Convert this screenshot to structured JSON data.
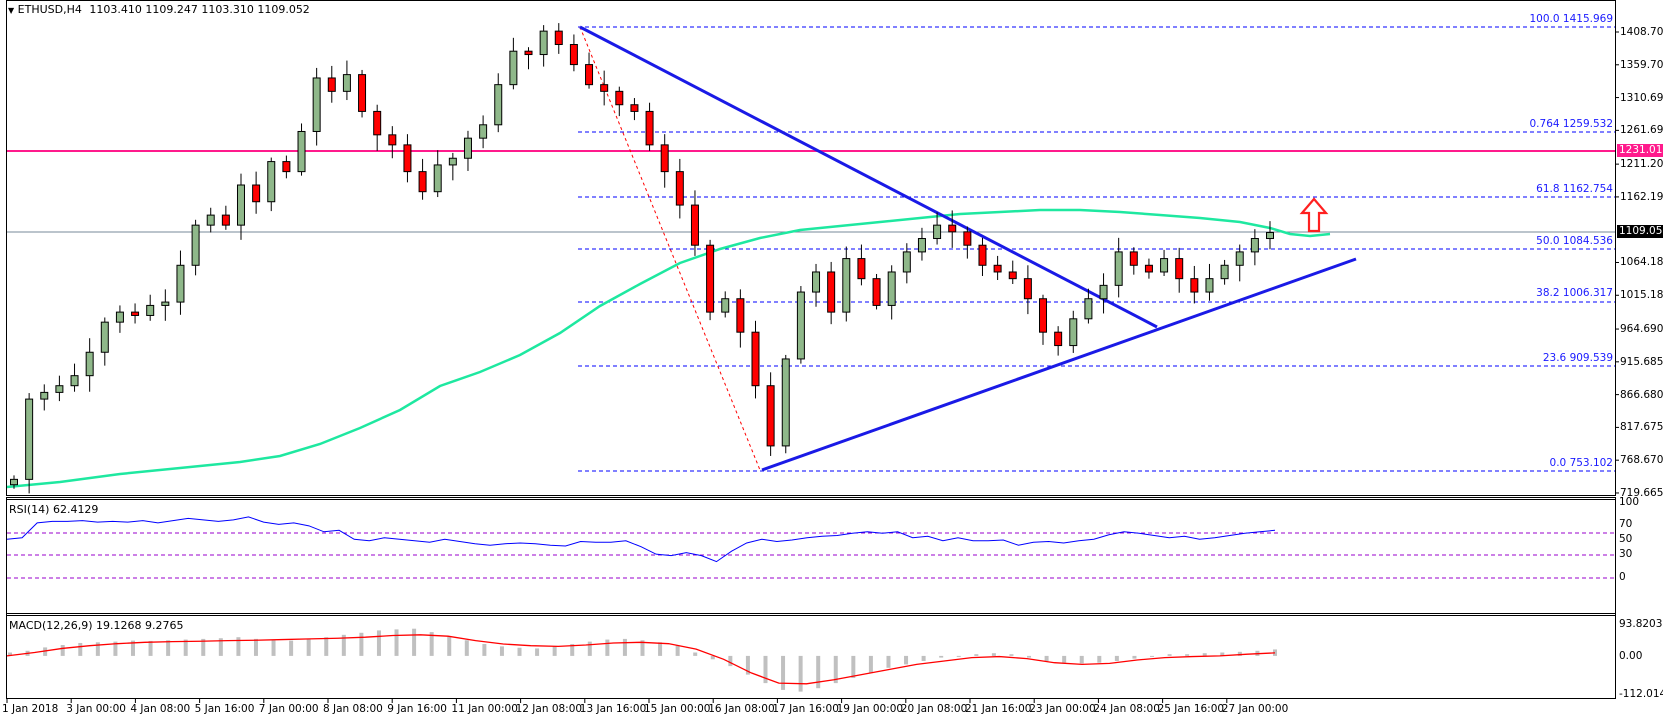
{
  "header": {
    "symbol": "ETHUSD,H4",
    "ohlc": "1103.410 1109.247 1103.310 1109.052",
    "rsi_label": "RSI(14) 62.4129",
    "macd_label": "MACD(12,26,9) 19.1268 9.2765"
  },
  "price_axis": {
    "ticks": [
      "1408.705",
      "1359.700",
      "1310.695",
      "1261.690",
      "1211.200",
      "1162.195",
      "1064.185",
      "1015.180",
      "964.690",
      "915.685",
      "866.680",
      "817.675",
      "768.670",
      "719.665"
    ],
    "current_price": "1109.052",
    "resistance_price": "1231.017"
  },
  "rsi_axis": {
    "ticks": [
      "100",
      "70",
      "50",
      "30",
      "0"
    ]
  },
  "macd_axis": {
    "ticks": [
      "93.8203",
      "0.00",
      "-112.0148"
    ]
  },
  "time_axis": {
    "ticks": [
      "1 Jan 2018",
      "3 Jan 00:00",
      "4 Jan 08:00",
      "5 Jan 16:00",
      "7 Jan 00:00",
      "8 Jan 08:00",
      "9 Jan 16:00",
      "11 Jan 00:00",
      "12 Jan 08:00",
      "13 Jan 16:00",
      "15 Jan 00:00",
      "16 Jan 08:00",
      "17 Jan 16:00",
      "19 Jan 00:00",
      "20 Jan 08:00",
      "21 Jan 16:00",
      "23 Jan 00:00",
      "24 Jan 08:00",
      "25 Jan 16:00",
      "27 Jan 00:00"
    ]
  },
  "fibonacci": [
    {
      "level": "100.0",
      "price": "1415.969"
    },
    {
      "level": "0.764",
      "price": "1259.532"
    },
    {
      "level": "61.8",
      "price": "1162.754"
    },
    {
      "level": "50.0",
      "price": "1084.536"
    },
    {
      "level": "38.2",
      "price": "1006.317"
    },
    {
      "level": "23.6",
      "price": "909.539"
    },
    {
      "level": "0.0",
      "price": "753.102"
    }
  ],
  "colors": {
    "bull": "#8fb88a",
    "bear": "#ff0000",
    "fib": "#0000ff",
    "trendline": "#1a1ae6",
    "resistance": "#ff1a8c",
    "ma": "#1ee8a0",
    "rsi": "#0000ff",
    "rsi_levels": "#9900cc",
    "macd_signal": "#ff0000",
    "macd_hist": "#c0c0c0",
    "current_line": "#778899"
  },
  "chart_data": [
    {
      "type": "candlestick",
      "title": "ETHUSD, H4",
      "ohlc_last": {
        "open": 1103.41,
        "high": 1109.247,
        "low": 1103.31,
        "close": 1109.052
      },
      "ylim": [
        719.665,
        1440
      ],
      "x_range": [
        "1 Jan 2018",
        "27 Jan 2018"
      ],
      "overlays": {
        "horizontal_resistance": 1231.017,
        "current_price": 1109.052,
        "fibonacci_retracement": {
          "high": 1415.969,
          "low": 753.102,
          "levels": {
            "0.0": 753.102,
            "23.6": 909.539,
            "38.2": 1006.317,
            "50.0": 1084.536,
            "61.8": 1162.754,
            "0.764": 1259.532,
            "100.0": 1415.969
          }
        },
        "descending_trendline": {
          "from": [
            "13 Jan 08:00",
            1416
          ],
          "to": [
            "24 Jan 16:00",
            970
          ]
        },
        "ascending_trendline": {
          "from": [
            "17 Jan 08:00",
            753
          ],
          "to": [
            "28 Jan 00:00",
            1067
          ]
        },
        "moving_average": "100-period SMA (green), rising from ~720 to ~1150 then flattening near 1110",
        "annotation": "red up arrow above price near 1162 level"
      },
      "approx_closes": [
        740,
        860,
        870,
        880,
        895,
        930,
        975,
        990,
        985,
        1000,
        1005,
        1060,
        1120,
        1135,
        1120,
        1180,
        1155,
        1215,
        1200,
        1260,
        1340,
        1320,
        1345,
        1290,
        1255,
        1240,
        1200,
        1170,
        1210,
        1220,
        1250,
        1270,
        1330,
        1380,
        1375,
        1410,
        1390,
        1360,
        1330,
        1320,
        1300,
        1290,
        1240,
        1200,
        1150,
        1090,
        990,
        1010,
        960,
        880,
        790,
        920,
        1020,
        1050,
        990,
        1070,
        1040,
        1000,
        1050,
        1080,
        1100,
        1120,
        1110,
        1090,
        1060,
        1050,
        1040,
        1010,
        960,
        940,
        980,
        1010,
        1030,
        1080,
        1060,
        1050,
        1070,
        1040,
        1020,
        1040,
        1060,
        1080,
        1100,
        1109
      ]
    },
    {
      "type": "line",
      "title": "RSI(14) 62.4129",
      "ylim": [
        0,
        100
      ],
      "levels": [
        30,
        50,
        70
      ],
      "approx_values": [
        50,
        52,
        72,
        74,
        74,
        75,
        73,
        74,
        73,
        75,
        72,
        75,
        78,
        76,
        74,
        76,
        80,
        73,
        70,
        72,
        68,
        60,
        62,
        50,
        48,
        52,
        50,
        48,
        46,
        50,
        47,
        44,
        42,
        44,
        45,
        44,
        42,
        41,
        47,
        46,
        46,
        48,
        40,
        30,
        28,
        32,
        28,
        20,
        34,
        45,
        50,
        47,
        49,
        52,
        54,
        55,
        58,
        60,
        58,
        60,
        52,
        54,
        48,
        52,
        48,
        48,
        49,
        42,
        46,
        47,
        45,
        48,
        50,
        56,
        60,
        58,
        55,
        52,
        54,
        50,
        52,
        55,
        58,
        60,
        62
      ]
    },
    {
      "type": "bar+line",
      "title": "MACD(12,26,9) 19.1268 9.2765",
      "ylim": [
        -112.0148,
        93.8203
      ],
      "series": [
        {
          "name": "MACD histogram",
          "approx_values": [
            10,
            15,
            25,
            32,
            38,
            40,
            42,
            45,
            44,
            46,
            48,
            50,
            52,
            55,
            50,
            46,
            45,
            50,
            55,
            62,
            68,
            75,
            78,
            80,
            70,
            58,
            46,
            35,
            28,
            24,
            22,
            28,
            35,
            42,
            48,
            50,
            46,
            40,
            30,
            10,
            -10,
            -30,
            -55,
            -80,
            -100,
            -105,
            -95,
            -80,
            -65,
            -50,
            -35,
            -25,
            -15,
            -5,
            0,
            5,
            8,
            5,
            -5,
            -15,
            -20,
            -22,
            -20,
            -15,
            -8,
            0,
            5,
            5,
            8,
            10,
            12,
            15,
            19
          ]
        },
        {
          "name": "Signal",
          "approx_values": [
            0,
            10,
            22,
            30,
            36,
            40,
            42,
            43,
            45,
            46,
            48,
            50,
            52,
            55,
            60,
            62,
            58,
            45,
            35,
            30,
            28,
            32,
            38,
            40,
            36,
            20,
            -10,
            -50,
            -80,
            -82,
            -70,
            -55,
            -40,
            -25,
            -15,
            -5,
            -2,
            -8,
            -20,
            -25,
            -22,
            -12,
            -5,
            -2,
            0,
            5,
            9
          ]
        }
      ]
    }
  ]
}
